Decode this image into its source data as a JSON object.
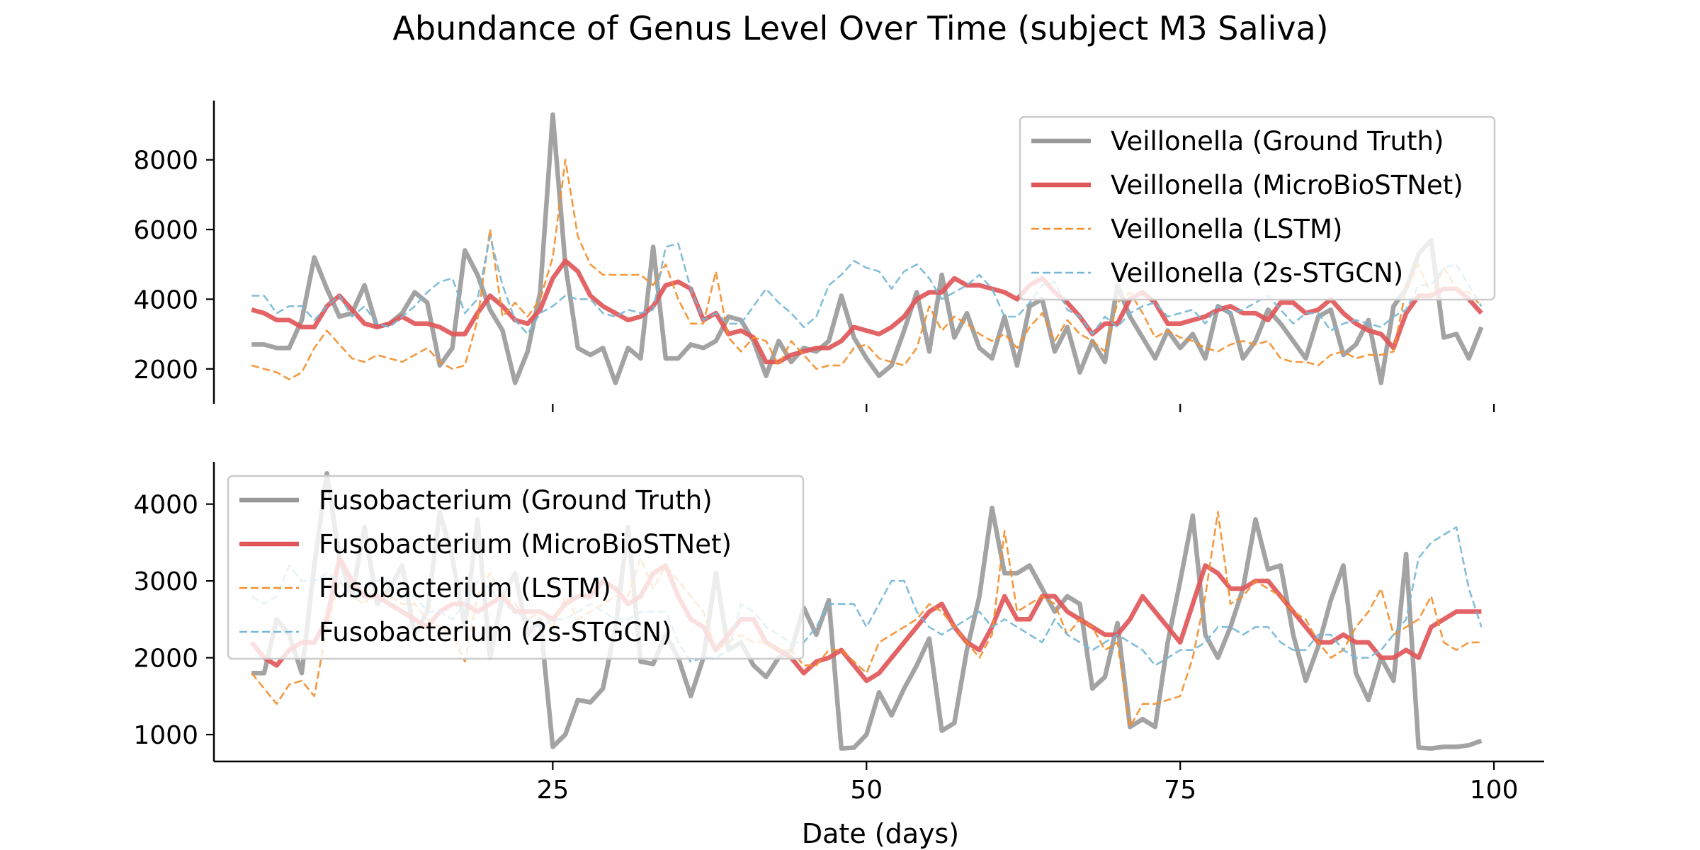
{
  "figure": {
    "title": "Abundance of Genus Level Over Time (subject M3 Saliva)"
  },
  "chart_data": [
    {
      "type": "line",
      "title": "",
      "xlabel": "",
      "ylabel": "",
      "xlim": [
        -2,
        104
      ],
      "ylim": [
        1000,
        9700
      ],
      "yticks": [
        2000,
        4000,
        6000,
        8000
      ],
      "xticks": [
        25,
        50,
        75,
        100
      ],
      "show_xtick_labels": false,
      "grid": false,
      "legend_position": "upper right",
      "x": [
        1,
        2,
        3,
        4,
        5,
        6,
        7,
        8,
        9,
        10,
        11,
        12,
        13,
        14,
        15,
        16,
        17,
        18,
        19,
        20,
        21,
        22,
        23,
        24,
        25,
        26,
        27,
        28,
        29,
        30,
        31,
        32,
        33,
        34,
        35,
        36,
        37,
        38,
        39,
        40,
        41,
        42,
        43,
        44,
        45,
        46,
        47,
        48,
        49,
        50,
        51,
        52,
        53,
        54,
        55,
        56,
        57,
        58,
        59,
        60,
        61,
        62,
        63,
        64,
        65,
        66,
        67,
        68,
        69,
        70,
        71,
        72,
        73,
        74,
        75,
        76,
        77,
        78,
        79,
        80,
        81,
        82,
        83,
        84,
        85,
        86,
        87,
        88,
        89,
        90,
        91,
        92,
        93,
        94,
        95,
        96,
        97,
        98,
        99
      ],
      "series": [
        {
          "name": "Veillonella (Ground Truth)",
          "color": "#999999",
          "style": "solid",
          "values": [
            2700,
            2700,
            2600,
            2600,
            3400,
            5200,
            4300,
            3500,
            3600,
            4400,
            3200,
            3300,
            3600,
            4200,
            3900,
            2100,
            2600,
            5400,
            4700,
            3700,
            3100,
            1600,
            2500,
            4200,
            9300,
            5000,
            2600,
            2400,
            2600,
            1600,
            2600,
            2300,
            5500,
            2300,
            2300,
            2700,
            2600,
            2800,
            3500,
            3400,
            2800,
            1800,
            2800,
            2200,
            2600,
            2500,
            2800,
            4100,
            2900,
            2300,
            1800,
            2100,
            3100,
            4200,
            2500,
            4700,
            2900,
            3600,
            2600,
            2300,
            3500,
            2100,
            3800,
            4000,
            2500,
            3200,
            1900,
            2800,
            2200,
            4400,
            3500,
            2900,
            2300,
            3100,
            2600,
            3000,
            2300,
            3800,
            3600,
            2300,
            2800,
            3700,
            3300,
            2800,
            2300,
            3500,
            3700,
            2400,
            2700,
            3400,
            1600,
            3800,
            4300,
            5300,
            5700,
            2900,
            3000,
            2300,
            3200
          ]
        },
        {
          "name": "Veillonella (MicroBioSTNet)",
          "color": "#e15759",
          "style": "solid-thick",
          "values": [
            3700,
            3600,
            3400,
            3400,
            3200,
            3200,
            3800,
            4100,
            3700,
            3300,
            3200,
            3300,
            3500,
            3300,
            3300,
            3200,
            3000,
            3000,
            3600,
            4100,
            3800,
            3400,
            3300,
            3700,
            4600,
            5100,
            4800,
            4100,
            3800,
            3600,
            3400,
            3500,
            3800,
            4400,
            4500,
            4300,
            3400,
            3600,
            3000,
            3100,
            2900,
            2200,
            2200,
            2400,
            2500,
            2600,
            2600,
            2800,
            3200,
            3100,
            3000,
            3200,
            3500,
            4000,
            4200,
            4200,
            4600,
            4400,
            4400,
            4300,
            4200,
            4000,
            4400,
            4600,
            4200,
            3900,
            3500,
            3000,
            3300,
            3300,
            4000,
            4200,
            3900,
            3300,
            3300,
            3400,
            3500,
            3700,
            3800,
            3600,
            3600,
            3400,
            3900,
            3900,
            3600,
            3700,
            4000,
            3600,
            3300,
            3100,
            3000,
            2600,
            3600,
            4100,
            4100,
            4300,
            4300,
            4000,
            3600
          ]
        },
        {
          "name": "Veillonella (LSTM)",
          "color": "#f28e2b",
          "style": "dashed",
          "values": [
            2100,
            2000,
            1900,
            1700,
            1900,
            2600,
            3100,
            2700,
            2300,
            2200,
            2400,
            2300,
            2200,
            2400,
            2600,
            2200,
            2000,
            2100,
            3400,
            6000,
            3500,
            3900,
            3500,
            4000,
            5200,
            8000,
            5800,
            5000,
            4700,
            4700,
            4700,
            4700,
            4400,
            5000,
            4000,
            3300,
            3300,
            4800,
            2900,
            2500,
            2900,
            2800,
            2100,
            2800,
            2400,
            2000,
            2100,
            2100,
            2600,
            2700,
            2300,
            2200,
            2100,
            2600,
            3800,
            3100,
            3500,
            3300,
            3000,
            2800,
            3000,
            2600,
            3200,
            3600,
            2800,
            3400,
            3000,
            2800,
            2500,
            3900,
            4200,
            3600,
            2900,
            3100,
            2900,
            2800,
            2600,
            2500,
            2700,
            2800,
            2700,
            2800,
            2300,
            2200,
            2200,
            2100,
            2400,
            2500,
            2300,
            2400,
            2400,
            2500,
            4300,
            5000,
            4100,
            4900,
            4300,
            4200,
            3800
          ]
        },
        {
          "name": "Veillonella (2s-STGCN)",
          "color": "#76b7d6",
          "style": "dashed",
          "values": [
            4100,
            4100,
            3600,
            3800,
            3800,
            3400,
            3800,
            4100,
            3500,
            3800,
            3300,
            3200,
            3500,
            3800,
            4200,
            4500,
            4600,
            3600,
            4000,
            5800,
            4400,
            3400,
            3000,
            3600,
            3800,
            4100,
            4000,
            4000,
            3600,
            3500,
            3700,
            3600,
            3700,
            5500,
            5600,
            4300,
            3400,
            3600,
            3300,
            3300,
            3800,
            4300,
            3900,
            3600,
            3200,
            3500,
            4400,
            4700,
            5100,
            4900,
            4800,
            4300,
            4800,
            5000,
            4600,
            4000,
            4200,
            4400,
            4700,
            4300,
            3500,
            3500,
            3900,
            4400,
            4500,
            3700,
            3500,
            3000,
            3500,
            3200,
            3600,
            3800,
            3900,
            3500,
            3600,
            3700,
            3300,
            3800,
            3600,
            3700,
            3900,
            4100,
            3700,
            3300,
            3600,
            3600,
            3100,
            3300,
            3400,
            3300,
            3200,
            3500,
            3700,
            4400,
            4400,
            4900,
            5000,
            4400,
            3800
          ]
        }
      ]
    },
    {
      "type": "line",
      "title": "",
      "xlabel": "Date (days)",
      "ylabel": "",
      "xlim": [
        -2,
        104
      ],
      "ylim": [
        650,
        4550
      ],
      "yticks": [
        1000,
        2000,
        3000,
        4000
      ],
      "xticks": [
        25,
        50,
        75,
        100
      ],
      "show_xtick_labels": true,
      "grid": false,
      "legend_position": "upper left",
      "x": [
        1,
        2,
        3,
        4,
        5,
        6,
        7,
        8,
        9,
        10,
        11,
        12,
        13,
        14,
        15,
        16,
        17,
        18,
        19,
        20,
        21,
        22,
        23,
        24,
        25,
        26,
        27,
        28,
        29,
        30,
        31,
        32,
        33,
        34,
        35,
        36,
        37,
        38,
        39,
        40,
        41,
        42,
        43,
        44,
        45,
        46,
        47,
        48,
        49,
        50,
        51,
        52,
        53,
        54,
        55,
        56,
        57,
        58,
        59,
        60,
        61,
        62,
        63,
        64,
        65,
        66,
        67,
        68,
        69,
        70,
        71,
        72,
        73,
        74,
        75,
        76,
        77,
        78,
        79,
        80,
        81,
        82,
        83,
        84,
        85,
        86,
        87,
        88,
        89,
        90,
        91,
        92,
        93,
        94,
        95,
        96,
        97,
        98,
        99
      ],
      "series": [
        {
          "name": "Fusobacterium (Ground Truth)",
          "color": "#999999",
          "style": "solid",
          "values": [
            1800,
            1800,
            2500,
            2300,
            1800,
            3200,
            4400,
            3300,
            2800,
            3700,
            2700,
            2900,
            3200,
            2300,
            2600,
            3900,
            3300,
            2400,
            3800,
            2000,
            2800,
            3100,
            2300,
            2500,
            840,
            1000,
            1450,
            1420,
            1600,
            2400,
            3700,
            1950,
            1920,
            2300,
            2000,
            1500,
            2000,
            3100,
            2100,
            2200,
            1900,
            1750,
            2000,
            2100,
            2650,
            2300,
            2750,
            820,
            830,
            1000,
            1550,
            1250,
            1600,
            1900,
            2250,
            1050,
            1150,
            2100,
            2800,
            3950,
            3100,
            3100,
            3200,
            2900,
            2600,
            2800,
            2700,
            1600,
            1750,
            2450,
            1100,
            1200,
            1100,
            2200,
            3000,
            3850,
            2300,
            2000,
            2400,
            2900,
            3800,
            3150,
            3200,
            2300,
            1700,
            2150,
            2750,
            3200,
            1800,
            1450,
            2000,
            1700,
            3350,
            830,
            820,
            840,
            840,
            860,
            920
          ]
        },
        {
          "name": "Fusobacterium (MicroBioSTNet)",
          "color": "#e15759",
          "style": "solid-thick",
          "values": [
            2200,
            2000,
            1900,
            2100,
            2200,
            2200,
            2500,
            3300,
            3000,
            2800,
            2800,
            2700,
            2600,
            2500,
            2400,
            2600,
            2700,
            2700,
            2600,
            2700,
            2800,
            2600,
            2600,
            2600,
            2500,
            2700,
            2800,
            2800,
            3000,
            2900,
            2700,
            2800,
            3100,
            3200,
            2800,
            2500,
            2400,
            2100,
            2300,
            2500,
            2500,
            2200,
            2100,
            2000,
            1800,
            1950,
            2000,
            2100,
            1900,
            1700,
            1800,
            2000,
            2200,
            2400,
            2600,
            2700,
            2400,
            2200,
            2100,
            2400,
            2800,
            2500,
            2500,
            2800,
            2800,
            2600,
            2500,
            2400,
            2300,
            2300,
            2500,
            2800,
            2600,
            2400,
            2200,
            2700,
            3200,
            3100,
            2900,
            2900,
            3000,
            3000,
            2800,
            2600,
            2400,
            2200,
            2200,
            2300,
            2200,
            2200,
            2000,
            2000,
            2100,
            2000,
            2400,
            2500,
            2600,
            2600,
            2600
          ]
        },
        {
          "name": "Fusobacterium (LSTM)",
          "color": "#f28e2b",
          "style": "dashed",
          "values": [
            1800,
            1600,
            1400,
            1650,
            1700,
            1500,
            2400,
            3000,
            2800,
            2700,
            2900,
            2800,
            2700,
            2700,
            2500,
            2400,
            2300,
            1950,
            2800,
            3100,
            2800,
            2700,
            2500,
            2600,
            2400,
            2800,
            2500,
            2600,
            2700,
            2800,
            2800,
            3300,
            2900,
            3200,
            3000,
            2800,
            2600,
            2100,
            2200,
            2300,
            2200,
            2200,
            2100,
            2100,
            1900,
            1900,
            2100,
            2100,
            1950,
            1800,
            2200,
            2300,
            2400,
            2500,
            2700,
            2600,
            2400,
            2200,
            2000,
            2300,
            3650,
            2600,
            2700,
            2800,
            2700,
            2300,
            2500,
            2400,
            2100,
            2200,
            1100,
            1400,
            1400,
            1450,
            1500,
            2000,
            2800,
            3900,
            2700,
            2800,
            3000,
            2900,
            2800,
            2600,
            2500,
            2200,
            2000,
            2100,
            2400,
            2600,
            2900,
            2300,
            2400,
            2500,
            2800,
            2200,
            2100,
            2200,
            2200
          ]
        },
        {
          "name": "Fusobacterium (2s-STGCN)",
          "color": "#76b7d6",
          "style": "dashed",
          "values": [
            2800,
            2700,
            2800,
            3200,
            3000,
            3000,
            3100,
            3000,
            2800,
            2900,
            3000,
            3000,
            2800,
            2800,
            2600,
            2600,
            2500,
            2700,
            3000,
            2900,
            2700,
            2600,
            2500,
            2400,
            2500,
            2500,
            2600,
            2700,
            2600,
            2500,
            2500,
            2600,
            2600,
            2600,
            2200,
            1950,
            2000,
            2000,
            2100,
            2700,
            2600,
            2400,
            2300,
            2200,
            2200,
            2400,
            2700,
            2700,
            2700,
            2400,
            2700,
            3000,
            3000,
            2600,
            2400,
            2300,
            2400,
            2500,
            2600,
            2400,
            2500,
            2400,
            2300,
            2200,
            2500,
            2300,
            2200,
            2100,
            2200,
            2300,
            2200,
            2100,
            1900,
            2000,
            2100,
            2100,
            2200,
            2400,
            2400,
            2300,
            2400,
            2400,
            2200,
            2100,
            2100,
            2300,
            2300,
            2100,
            2000,
            2000,
            2100,
            2300,
            2500,
            3300,
            3500,
            3600,
            3700,
            2900,
            2400
          ]
        }
      ]
    }
  ]
}
